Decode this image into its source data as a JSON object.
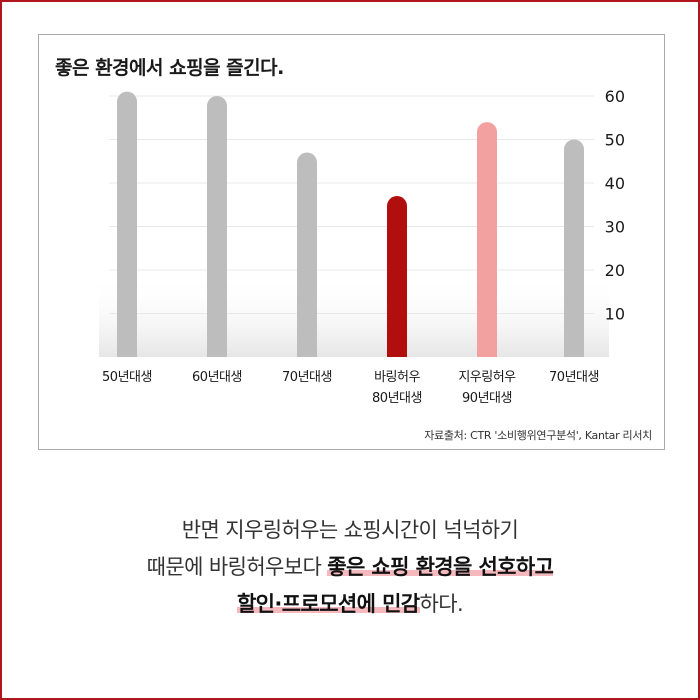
{
  "chart_data": {
    "type": "bar",
    "title": "좋은 환경에서 쇼핑을 즐긴다.",
    "categories": [
      [
        "50년대생"
      ],
      [
        "60년대생"
      ],
      [
        "70년대생"
      ],
      [
        "바링허우",
        "80년대생"
      ],
      [
        "지우링허우",
        "90년대생"
      ],
      [
        "70년대생"
      ]
    ],
    "values": [
      61,
      60,
      47,
      37,
      54,
      50
    ],
    "bar_colors": [
      "#bdbdbd",
      "#bdbdbd",
      "#bdbdbd",
      "#b10e0e",
      "#f2a0a0",
      "#bdbdbd"
    ],
    "y_ticks": [
      10,
      20,
      30,
      40,
      50,
      60
    ],
    "ylim": [
      0,
      60
    ],
    "grid": true,
    "y_axis_side": "right",
    "source": "자료출처: CTR '소비행위연구분석', Kantar 리서치"
  },
  "caption": {
    "line1": "반면 지우링허우는 쇼핑시간이 넉넉하기",
    "line2_plain": "때문에 바링허우보다 ",
    "line2_bold": "좋은 쇼핑 환경을 선호하고",
    "line3_bold": "할인·프로모션에 민감",
    "line3_plain": "하다."
  }
}
